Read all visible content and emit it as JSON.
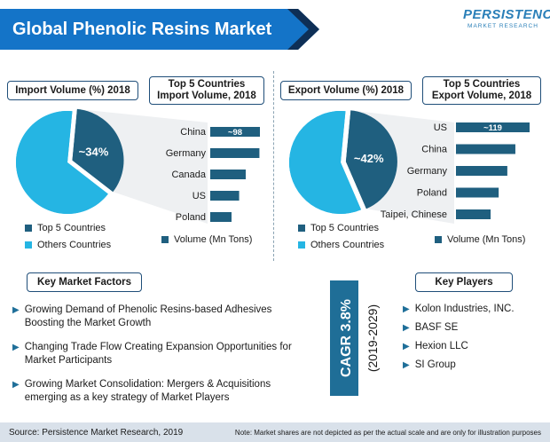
{
  "header": {
    "title": "Global Phenolic Resins Market"
  },
  "logo": {
    "main": "PERSISTENCE",
    "sub": "MARKET RESEARCH"
  },
  "colors": {
    "dark": "#1f5f7f",
    "light": "#25b5e3",
    "banner": "#1474c8",
    "accent_dark": "#0e2f56"
  },
  "import": {
    "volume_label": "Import Volume (%) 2018",
    "top5_title_line1": "Top 5 Countries",
    "top5_title_line2": "Import Volume, 2018",
    "pie_label": "~34%",
    "legend_top5": "Top 5 Countries",
    "legend_others": "Others Countries",
    "legend_volume": "Volume (Mn Tons)"
  },
  "export": {
    "volume_label": "Export Volume (%) 2018",
    "top5_title_line1": "Top 5 Countries",
    "top5_title_line2": "Export Volume, 2018",
    "pie_label": "~42%",
    "legend_top5": "Top 5 Countries",
    "legend_others": "Others Countries",
    "legend_volume": "Volume (Mn Tons)"
  },
  "chart_data": [
    {
      "type": "pie",
      "title": "Import Volume (%) 2018",
      "labels": [
        "Top 5 Countries",
        "Others Countries"
      ],
      "values": [
        34,
        66
      ],
      "data_labels": [
        "~34%",
        ""
      ]
    },
    {
      "type": "bar",
      "orientation": "horizontal",
      "title": "Top 5 Countries Import Volume, 2018",
      "categories": [
        "China",
        "Germany",
        "Canada",
        "US",
        "Poland"
      ],
      "values": [
        98,
        97,
        70,
        57,
        42
      ],
      "data_labels": [
        "~98",
        "",
        "",
        "",
        ""
      ],
      "unit": "Volume (Mn Tons)"
    },
    {
      "type": "pie",
      "title": "Export Volume (%) 2018",
      "labels": [
        "Top 5 Countries",
        "Others Countries"
      ],
      "values": [
        42,
        58
      ],
      "data_labels": [
        "~42%",
        ""
      ]
    },
    {
      "type": "bar",
      "orientation": "horizontal",
      "title": "Top 5 Countries Export Volume, 2018",
      "categories": [
        "US",
        "China",
        "Germany",
        "Poland",
        "Taipei, Chinese"
      ],
      "values": [
        119,
        96,
        83,
        69,
        56
      ],
      "data_labels": [
        "~119",
        "",
        "",
        "",
        ""
      ],
      "unit": "Volume (Mn Tons)"
    }
  ],
  "factors": {
    "title": "Key Market Factors",
    "items": [
      "Growing Demand of Phenolic Resins-based Adhesives Boosting the Market Growth",
      "Changing Trade Flow Creating Expansion Opportunities for Market Participants",
      "Growing Market Consolidation: Mergers & Acquisitions emerging as a key strategy of Market Players"
    ]
  },
  "cagr": {
    "value": "CAGR 3.8%",
    "period": "(2019-2029)"
  },
  "players": {
    "title": "Key Players",
    "items": [
      "Kolon Industries, INC.",
      "BASF SE",
      "Hexion LLC",
      "SI Group"
    ]
  },
  "footer": {
    "source": "Source: Persistence Market Research, 2019",
    "note": "Note: Market shares are not depicted as per the actual scale and are only for illustration purposes"
  }
}
